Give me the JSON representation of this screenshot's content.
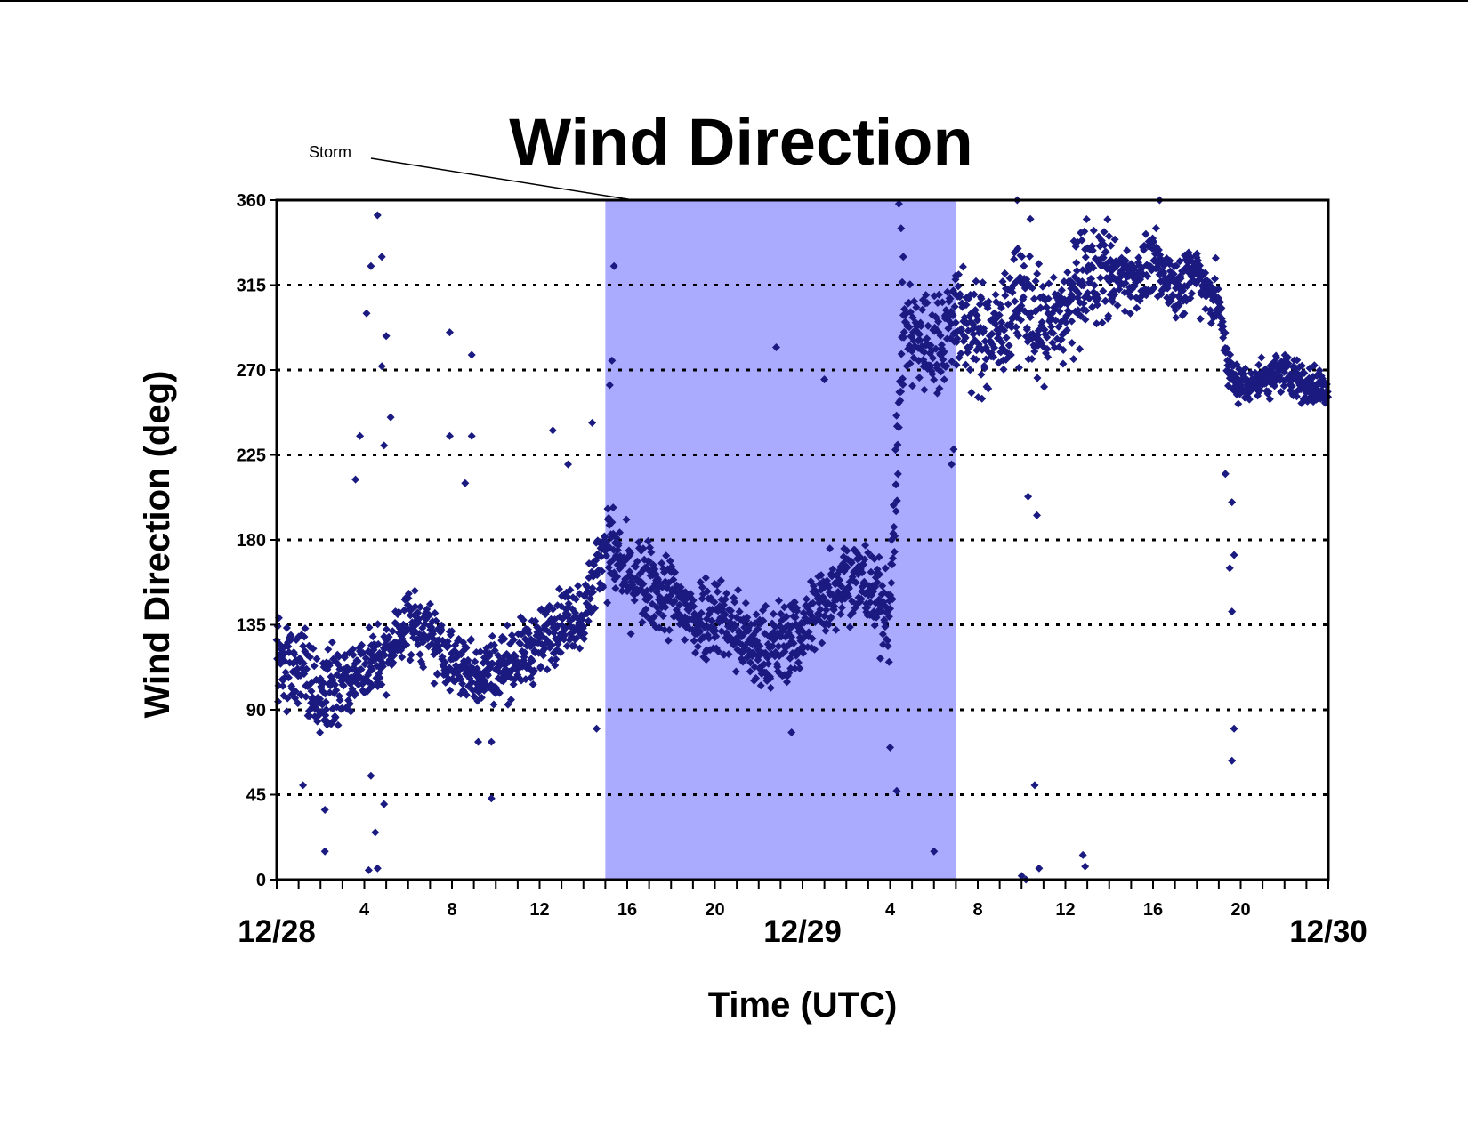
{
  "chart_data": {
    "type": "scatter",
    "title": "Wind Direction",
    "xlabel": "Time (UTC)",
    "ylabel": "Wind Direction (deg)",
    "x_unit": "hours since 12/28 00:00 UTC",
    "xlim": [
      0,
      48
    ],
    "ylim": [
      0,
      360
    ],
    "yticks": [
      "0",
      "45",
      "90",
      "135",
      "180",
      "225",
      "270",
      "315",
      "360"
    ],
    "hour_ticks": [
      {
        "hour": 4,
        "label": "4"
      },
      {
        "hour": 8,
        "label": "8"
      },
      {
        "hour": 12,
        "label": "12"
      },
      {
        "hour": 16,
        "label": "16"
      },
      {
        "hour": 20,
        "label": "20"
      },
      {
        "hour": 28,
        "label": "4"
      },
      {
        "hour": 32,
        "label": "8"
      },
      {
        "hour": 36,
        "label": "12"
      },
      {
        "hour": 40,
        "label": "16"
      },
      {
        "hour": 44,
        "label": "20"
      }
    ],
    "date_labels": [
      {
        "hour": 0,
        "label": "12/28"
      },
      {
        "hour": 24,
        "label": "12/29"
      },
      {
        "hour": 48,
        "label": "12/30"
      }
    ],
    "grid": "horizontal dotted",
    "marker": "diamond",
    "marker_color": "#1a1a80",
    "shaded_region": {
      "label": "Storm",
      "start_hour": 15.0,
      "end_hour": 31.0,
      "color": "#aaaaff"
    },
    "series_trend": [
      {
        "hour": 0,
        "deg": 118
      },
      {
        "hour": 1,
        "deg": 112
      },
      {
        "hour": 2,
        "deg": 95
      },
      {
        "hour": 3,
        "deg": 105
      },
      {
        "hour": 4,
        "deg": 112
      },
      {
        "hour": 5,
        "deg": 118
      },
      {
        "hour": 6,
        "deg": 138
      },
      {
        "hour": 7,
        "deg": 128
      },
      {
        "hour": 8,
        "deg": 115
      },
      {
        "hour": 9,
        "deg": 110
      },
      {
        "hour": 10,
        "deg": 112
      },
      {
        "hour": 11,
        "deg": 118
      },
      {
        "hour": 12,
        "deg": 125
      },
      {
        "hour": 13,
        "deg": 138
      },
      {
        "hour": 14,
        "deg": 140
      },
      {
        "hour": 15,
        "deg": 180
      },
      {
        "hour": 16,
        "deg": 160
      },
      {
        "hour": 17,
        "deg": 155
      },
      {
        "hour": 18,
        "deg": 150
      },
      {
        "hour": 19,
        "deg": 138
      },
      {
        "hour": 20,
        "deg": 142
      },
      {
        "hour": 21,
        "deg": 132
      },
      {
        "hour": 22,
        "deg": 120
      },
      {
        "hour": 23,
        "deg": 125
      },
      {
        "hour": 24,
        "deg": 132
      },
      {
        "hour": 25,
        "deg": 150
      },
      {
        "hour": 26,
        "deg": 162
      },
      {
        "hour": 27,
        "deg": 155
      },
      {
        "hour": 28,
        "deg": 140
      },
      {
        "hour": 28.6,
        "deg": 295
      },
      {
        "hour": 29,
        "deg": 290
      },
      {
        "hour": 30,
        "deg": 282
      },
      {
        "hour": 31,
        "deg": 300
      },
      {
        "hour": 32,
        "deg": 285
      },
      {
        "hour": 33,
        "deg": 290
      },
      {
        "hour": 34,
        "deg": 310
      },
      {
        "hour": 35,
        "deg": 290
      },
      {
        "hour": 36,
        "deg": 300
      },
      {
        "hour": 37,
        "deg": 320
      },
      {
        "hour": 38,
        "deg": 322
      },
      {
        "hour": 39,
        "deg": 318
      },
      {
        "hour": 40,
        "deg": 325
      },
      {
        "hour": 41,
        "deg": 315
      },
      {
        "hour": 42,
        "deg": 322
      },
      {
        "hour": 43,
        "deg": 305
      },
      {
        "hour": 43.5,
        "deg": 268
      },
      {
        "hour": 44,
        "deg": 262
      },
      {
        "hour": 45,
        "deg": 265
      },
      {
        "hour": 46,
        "deg": 270
      },
      {
        "hour": 47,
        "deg": 262
      },
      {
        "hour": 48,
        "deg": 260
      }
    ],
    "outliers": [
      {
        "hour": 4.6,
        "deg": 352
      },
      {
        "hour": 4.8,
        "deg": 330
      },
      {
        "hour": 4.3,
        "deg": 325
      },
      {
        "hour": 4.1,
        "deg": 300
      },
      {
        "hour": 5.0,
        "deg": 288
      },
      {
        "hour": 4.8,
        "deg": 272
      },
      {
        "hour": 5.2,
        "deg": 245
      },
      {
        "hour": 4.9,
        "deg": 230
      },
      {
        "hour": 3.8,
        "deg": 235
      },
      {
        "hour": 3.6,
        "deg": 212
      },
      {
        "hour": 4.2,
        "deg": 5
      },
      {
        "hour": 4.6,
        "deg": 6
      },
      {
        "hour": 4.5,
        "deg": 25
      },
      {
        "hour": 2.2,
        "deg": 15
      },
      {
        "hour": 2.2,
        "deg": 37
      },
      {
        "hour": 1.2,
        "deg": 50
      },
      {
        "hour": 4.9,
        "deg": 40
      },
      {
        "hour": 4.3,
        "deg": 55
      },
      {
        "hour": 7.9,
        "deg": 290
      },
      {
        "hour": 8.9,
        "deg": 278
      },
      {
        "hour": 7.9,
        "deg": 235
      },
      {
        "hour": 8.9,
        "deg": 235
      },
      {
        "hour": 8.6,
        "deg": 210
      },
      {
        "hour": 9.8,
        "deg": 43
      },
      {
        "hour": 9.2,
        "deg": 73
      },
      {
        "hour": 9.8,
        "deg": 73
      },
      {
        "hour": 12.6,
        "deg": 238
      },
      {
        "hour": 13.3,
        "deg": 220
      },
      {
        "hour": 14.4,
        "deg": 242
      },
      {
        "hour": 14.6,
        "deg": 80
      },
      {
        "hour": 15.4,
        "deg": 325
      },
      {
        "hour": 15.3,
        "deg": 275
      },
      {
        "hour": 15.2,
        "deg": 262
      },
      {
        "hour": 22.8,
        "deg": 282
      },
      {
        "hour": 23.5,
        "deg": 78
      },
      {
        "hour": 25.0,
        "deg": 265
      },
      {
        "hour": 28.0,
        "deg": 70
      },
      {
        "hour": 28.3,
        "deg": 47
      },
      {
        "hour": 30.0,
        "deg": 15
      },
      {
        "hour": 28.4,
        "deg": 358
      },
      {
        "hour": 28.5,
        "deg": 345
      },
      {
        "hour": 28.6,
        "deg": 330
      },
      {
        "hour": 34.0,
        "deg": 2
      },
      {
        "hour": 34.2,
        "deg": 0
      },
      {
        "hour": 34.8,
        "deg": 6
      },
      {
        "hour": 36.8,
        "deg": 13
      },
      {
        "hour": 36.9,
        "deg": 7
      },
      {
        "hour": 34.6,
        "deg": 50
      },
      {
        "hour": 34.7,
        "deg": 193
      },
      {
        "hour": 34.3,
        "deg": 203
      },
      {
        "hour": 33.8,
        "deg": 360
      },
      {
        "hour": 34.4,
        "deg": 350
      },
      {
        "hour": 40.3,
        "deg": 360
      },
      {
        "hour": 43.7,
        "deg": 80
      },
      {
        "hour": 43.6,
        "deg": 63
      },
      {
        "hour": 43.6,
        "deg": 142
      },
      {
        "hour": 43.5,
        "deg": 165
      },
      {
        "hour": 43.7,
        "deg": 172
      },
      {
        "hour": 43.6,
        "deg": 200
      },
      {
        "hour": 43.3,
        "deg": 215
      },
      {
        "hour": 30.9,
        "deg": 228
      },
      {
        "hour": 30.8,
        "deg": 220
      },
      {
        "hour": 31.0,
        "deg": 320
      }
    ]
  }
}
